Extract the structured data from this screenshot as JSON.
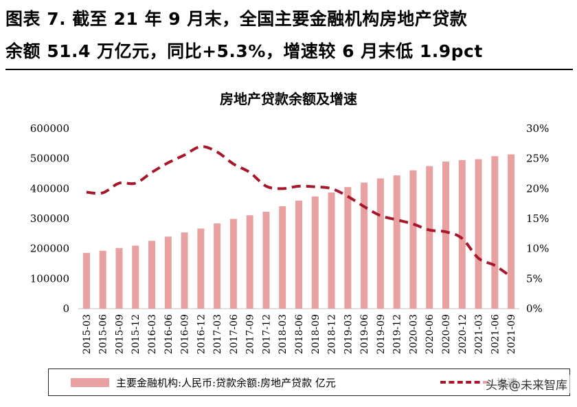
{
  "header": {
    "title_line1": "图表 7. 截至 21 年 9 月末，全国主要金融机构房地产贷款",
    "title_line2": "余额 51.4 万亿元，同比+5.3%，增速较 6 月末低 1.9pct"
  },
  "watermark": "头条@未来智库",
  "colors": {
    "bar": "#e8a0a0",
    "line": "#a6172a",
    "axis": "#bfbfbf",
    "text": "#000000"
  },
  "chart_data": {
    "type": "bar+line",
    "title": "房地产贷款余额及增速",
    "categories": [
      "2015-03",
      "2015-06",
      "2015-09",
      "2015-12",
      "2016-03",
      "2016-06",
      "2016-09",
      "2016-12",
      "2017-03",
      "2017-06",
      "2017-09",
      "2017-12",
      "2018-03",
      "2018-06",
      "2018-09",
      "2018-12",
      "2019-03",
      "2019-06",
      "2019-09",
      "2019-12",
      "2020-03",
      "2020-06",
      "2020-09",
      "2020-12",
      "2021-03",
      "2021-06",
      "2021-09"
    ],
    "y_left": {
      "range": [
        0,
        600000
      ],
      "ticks": [
        "0",
        "100000",
        "200000",
        "300000",
        "400000",
        "500000",
        "600000"
      ]
    },
    "y_right": {
      "range": [
        0,
        0.3
      ],
      "ticks": [
        "0%",
        "5%",
        "10%",
        "15%",
        "20%",
        "25%",
        "30%"
      ]
    },
    "series": [
      {
        "name": "主要金融机构:人民币:贷款余额:房地产贷款 亿元",
        "type": "bar",
        "axis": "left",
        "values": [
          186000,
          193000,
          202000,
          210000,
          226000,
          240000,
          254000,
          267000,
          284000,
          299000,
          311000,
          323000,
          341000,
          360000,
          374000,
          387000,
          405000,
          420000,
          434000,
          444000,
          461000,
          475000,
          490000,
          495000,
          498000,
          508000,
          514000
        ]
      },
      {
        "name": "增速",
        "type": "line",
        "axis": "right",
        "style": "dashed",
        "values": [
          0.194,
          0.193,
          0.209,
          0.209,
          0.227,
          0.243,
          0.256,
          0.27,
          0.261,
          0.241,
          0.227,
          0.204,
          0.2,
          0.204,
          0.203,
          0.2,
          0.187,
          0.17,
          0.155,
          0.148,
          0.141,
          0.131,
          0.128,
          0.117,
          0.084,
          0.072,
          0.053
        ]
      }
    ],
    "legend_position": "bottom",
    "grid": false
  }
}
